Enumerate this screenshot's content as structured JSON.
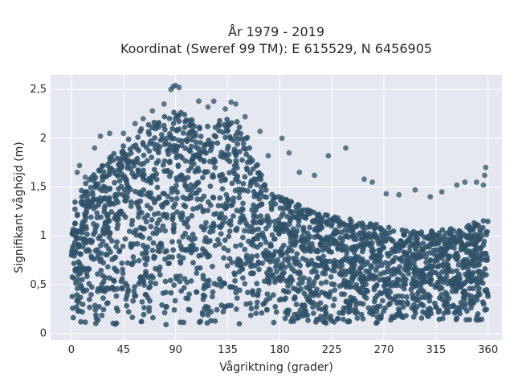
{
  "chart_data": {
    "type": "scatter",
    "title_line1": "År 1979 - 2019",
    "title_line2": "Koordinat (Sweref 99 TM): E 615529, N 6456905",
    "xlabel": "Vågriktning (grader)",
    "ylabel": "Signifikant våghöjd (m)",
    "xlim": [
      -18,
      372
    ],
    "ylim": [
      -0.07,
      2.65
    ],
    "x_ticks": [
      0,
      45,
      90,
      135,
      180,
      225,
      270,
      315,
      360
    ],
    "x_tick_labels": [
      "0",
      "45",
      "90",
      "135",
      "180",
      "225",
      "270",
      "315",
      "360"
    ],
    "y_ticks": [
      0,
      0.5,
      1,
      1.5,
      2,
      2.5
    ],
    "y_tick_labels": [
      "0",
      "0,5",
      "1",
      "1,5",
      "2",
      "2,5"
    ],
    "grid": true,
    "marker_color": "#2f5168",
    "background_color": "#e5e8f0",
    "envelope_x": [
      0,
      10,
      20,
      30,
      45,
      60,
      75,
      90,
      105,
      120,
      135,
      150,
      160,
      170,
      180,
      200,
      225,
      250,
      270,
      290,
      315,
      340,
      360
    ],
    "envelope_upper": [
      1.35,
      1.5,
      1.65,
      1.8,
      1.95,
      2.1,
      2.2,
      2.3,
      2.2,
      2.15,
      2.25,
      2.1,
      1.75,
      1.5,
      1.4,
      1.3,
      1.2,
      1.15,
      1.1,
      1.05,
      1.05,
      1.1,
      1.2
    ],
    "envelope_lower": [
      0.1,
      0.1,
      0.08,
      0.08,
      0.08,
      0.07,
      0.07,
      0.07,
      0.07,
      0.07,
      0.07,
      0.07,
      0.08,
      0.1,
      0.1,
      0.1,
      0.1,
      0.1,
      0.1,
      0.1,
      0.12,
      0.12,
      0.12
    ],
    "outliers": [
      [
        5,
        1.65
      ],
      [
        7,
        1.72
      ],
      [
        12,
        1.6
      ],
      [
        20,
        1.9
      ],
      [
        25,
        2.02
      ],
      [
        33,
        2.05
      ],
      [
        45,
        2.05
      ],
      [
        55,
        2.15
      ],
      [
        62,
        2.2
      ],
      [
        70,
        2.28
      ],
      [
        80,
        2.35
      ],
      [
        86,
        2.5
      ],
      [
        88,
        2.53
      ],
      [
        90,
        2.54
      ],
      [
        93,
        2.52
      ],
      [
        110,
        2.38
      ],
      [
        118,
        2.32
      ],
      [
        123,
        2.38
      ],
      [
        133,
        2.3
      ],
      [
        138,
        2.37
      ],
      [
        142,
        2.35
      ],
      [
        150,
        2.22
      ],
      [
        163,
        2.07
      ],
      [
        170,
        1.82
      ],
      [
        182,
        2.0
      ],
      [
        188,
        1.85
      ],
      [
        197,
        1.65
      ],
      [
        210,
        1.62
      ],
      [
        222,
        1.82
      ],
      [
        237,
        1.9
      ],
      [
        253,
        1.58
      ],
      [
        260,
        1.55
      ],
      [
        272,
        1.43
      ],
      [
        283,
        1.42
      ],
      [
        297,
        1.47
      ],
      [
        310,
        1.4
      ],
      [
        320,
        1.45
      ],
      [
        333,
        1.52
      ],
      [
        340,
        1.55
      ],
      [
        350,
        1.55
      ],
      [
        357,
        1.62
      ],
      [
        358,
        1.7
      ],
      [
        356,
        1.52
      ]
    ]
  }
}
